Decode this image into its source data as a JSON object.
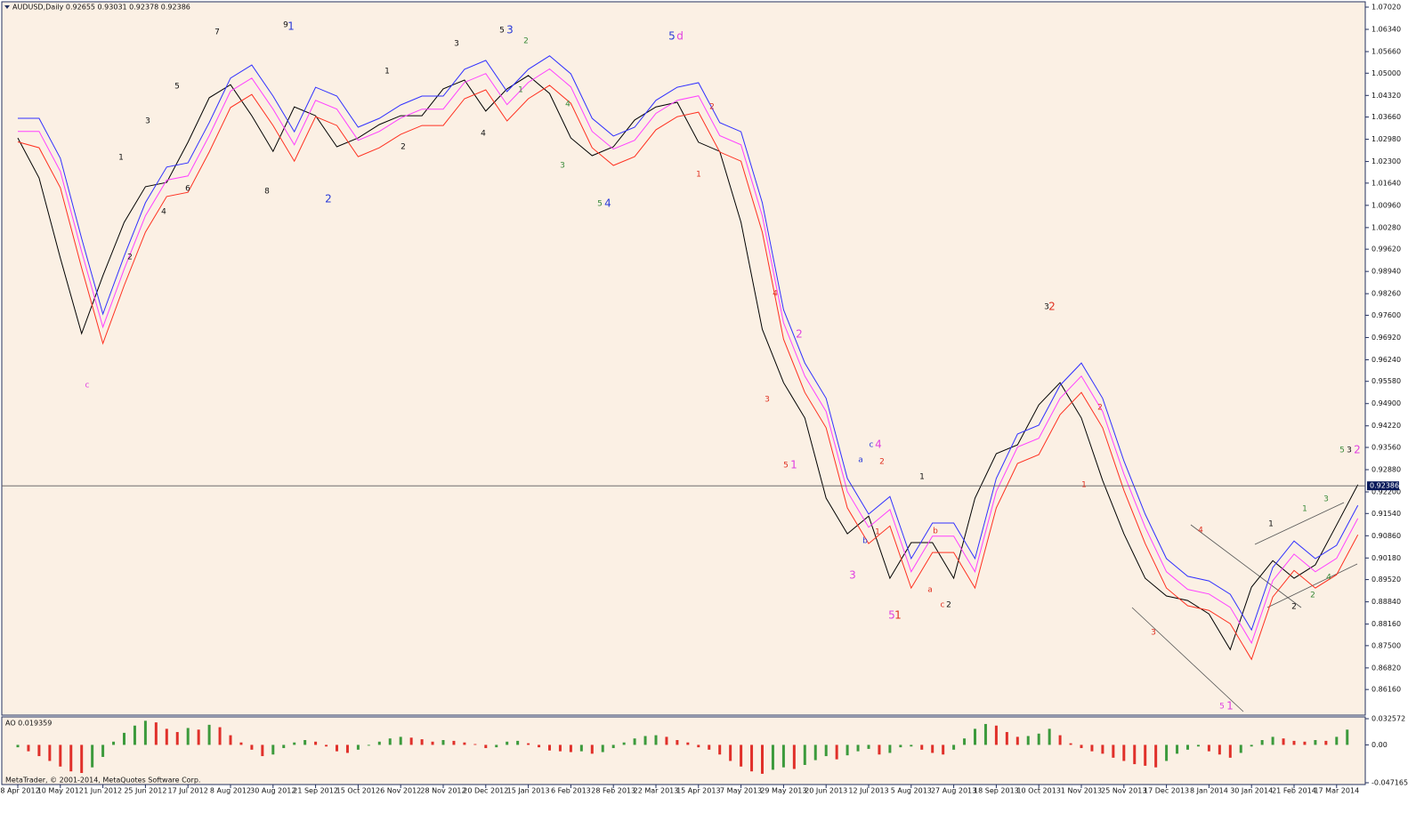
{
  "chart_data": [
    {
      "type": "line",
      "title": "AUDUSD,Daily  0.92655 0.93031 0.92378 0.92386",
      "categories": [
        "18 Apr 2012",
        null,
        "10 May 2012",
        null,
        "1 Jun 2012",
        null,
        "25 Jun 2012",
        null,
        "17 Jul 2012",
        null,
        "8 Aug 2012",
        null,
        "30 Aug 2012",
        null,
        "21 Sep 2012",
        null,
        "15 Oct 2012",
        null,
        "6 Nov 2012",
        null,
        "28 Nov 2012",
        null,
        "20 Dec 2012",
        null,
        "15 Jan 2013",
        null,
        "6 Feb 2013",
        null,
        "28 Feb 2013",
        null,
        "22 Mar 2013",
        null,
        "15 Apr 2013",
        null,
        "7 May 2013",
        null,
        "29 May 2013",
        null,
        "20 Jun 2013",
        null,
        "12 Jul 2013",
        null,
        "5 Aug 2013",
        null,
        "27 Aug 2013",
        null,
        "18 Sep 2013",
        null,
        "10 Oct 2013",
        null,
        "1 Nov 2013",
        null,
        "25 Nov 2013",
        null,
        "17 Dec 2013",
        null,
        "8 Jan 2014",
        null,
        "30 Jan 2014",
        null,
        "21 Feb 2014",
        null,
        "17 Mar 2014",
        null
      ],
      "series": [
        {
          "color": "#000000",
          "values": [
            1.0302,
            1.018,
            0.9935,
            0.9704,
            0.9881,
            1.0044,
            1.0153,
            1.0166,
            1.0289,
            1.0425,
            1.0465,
            1.037,
            1.0261,
            1.0397,
            1.037,
            1.0275,
            1.0302,
            1.0343,
            1.037,
            1.037,
            1.0452,
            1.0479,
            1.0384,
            1.0452,
            1.0493,
            1.0438,
            1.0302,
            1.0248,
            1.0275,
            1.0357,
            1.0397,
            1.0411,
            1.0289,
            1.0261,
            1.0044,
            0.9717,
            0.9554,
            0.9446,
            0.9201,
            0.9092,
            0.9146,
            0.8956,
            0.9065,
            0.9065,
            0.8956,
            0.9201,
            0.9337,
            0.9364,
            0.9486,
            0.9554,
            0.9446,
            0.9255,
            0.9092,
            0.8956,
            0.8902,
            0.8888,
            0.8847,
            0.8738,
            0.8929,
            0.901,
            0.8956,
            0.8997,
            0.9119,
            0.9242
          ]
        },
        {
          "color": "#ff3020",
          "values": [
            1.029,
            1.0272,
            1.015,
            0.9905,
            0.9674,
            0.9851,
            1.0014,
            1.0123,
            1.0136,
            1.0259,
            1.0395,
            1.0435,
            1.034,
            1.0231,
            1.0367,
            1.034,
            1.0245,
            1.0272,
            1.0313,
            1.034,
            1.034,
            1.0422,
            1.0449,
            1.0354,
            1.0422,
            1.0463,
            1.0408,
            1.0272,
            1.0218,
            1.0245,
            1.0327,
            1.0367,
            1.0381,
            1.0259,
            1.0231,
            1.0014,
            0.9687,
            0.9524,
            0.9416,
            0.9171,
            0.9062,
            0.9116,
            0.8926,
            0.9035,
            0.9035,
            0.8926,
            0.9171,
            0.9307,
            0.9334,
            0.9456,
            0.9524,
            0.9416,
            0.9225,
            0.9062,
            0.8926,
            0.8872,
            0.8858,
            0.8817,
            0.8708,
            0.8899,
            0.898,
            0.8926,
            0.8967,
            0.9089
          ]
        },
        {
          "color": "#ff40ff",
          "values": [
            1.0322,
            1.0322,
            1.02,
            0.9955,
            0.9724,
            0.9901,
            1.0064,
            1.0173,
            1.0186,
            1.0309,
            1.0445,
            1.0485,
            1.039,
            1.0281,
            1.0417,
            1.039,
            1.0295,
            1.0322,
            1.0363,
            1.039,
            1.039,
            1.0472,
            1.0499,
            1.0404,
            1.0472,
            1.0513,
            1.0458,
            1.0322,
            1.0268,
            1.0295,
            1.0377,
            1.0417,
            1.0431,
            1.0309,
            1.0281,
            1.0064,
            0.9737,
            0.9574,
            0.9466,
            0.9221,
            0.9112,
            0.9166,
            0.8976,
            0.9085,
            0.9085,
            0.8976,
            0.9221,
            0.9357,
            0.9384,
            0.9506,
            0.9574,
            0.9466,
            0.9275,
            0.9112,
            0.8976,
            0.8922,
            0.8908,
            0.8867,
            0.8758,
            0.8949,
            0.903,
            0.8976,
            0.9017,
            0.9139
          ]
        },
        {
          "color": "#3030ff",
          "values": [
            1.0362,
            1.0362,
            1.024,
            0.9995,
            0.9764,
            0.9941,
            1.0104,
            1.0213,
            1.0226,
            1.0349,
            1.0485,
            1.0525,
            1.043,
            1.0321,
            1.0457,
            1.043,
            1.0335,
            1.0362,
            1.0403,
            1.043,
            1.043,
            1.0512,
            1.0539,
            1.0444,
            1.0512,
            1.0553,
            1.0498,
            1.0362,
            1.0308,
            1.0335,
            1.0417,
            1.0457,
            1.0471,
            1.0349,
            1.0321,
            1.0104,
            0.9777,
            0.9614,
            0.9506,
            0.9261,
            0.9152,
            0.9206,
            0.9016,
            0.9125,
            0.9125,
            0.9016,
            0.9261,
            0.9397,
            0.9424,
            0.9546,
            0.9614,
            0.9506,
            0.9315,
            0.9152,
            0.9016,
            0.8962,
            0.8948,
            0.8907,
            0.8798,
            0.8989,
            0.907,
            0.9016,
            0.9057,
            0.9179
          ]
        }
      ],
      "ylim": [
        0.8543,
        1.0702
      ],
      "yticks": [
        {
          "value": 1.0702,
          "label": "1.07020"
        },
        {
          "value": 1.0634,
          "label": "1.06340"
        },
        {
          "value": 1.0566,
          "label": "1.05660"
        },
        {
          "value": 1.05,
          "label": "1.05000"
        },
        {
          "value": 1.0432,
          "label": "1.04320"
        },
        {
          "value": 1.0366,
          "label": "1.03660"
        },
        {
          "value": 1.0298,
          "label": "1.02980"
        },
        {
          "value": 1.023,
          "label": "1.02300"
        },
        {
          "value": 1.0164,
          "label": "1.01640"
        },
        {
          "value": 1.0096,
          "label": "1.00960"
        },
        {
          "value": 1.0028,
          "label": "1.00280"
        },
        {
          "value": 0.9962,
          "label": "0.99620"
        },
        {
          "value": 0.9894,
          "label": "0.98940"
        },
        {
          "value": 0.9826,
          "label": "0.98260"
        },
        {
          "value": 0.976,
          "label": "0.97600"
        },
        {
          "value": 0.9692,
          "label": "0.96920"
        },
        {
          "value": 0.9624,
          "label": "0.96240"
        },
        {
          "value": 0.9558,
          "label": "0.95580"
        },
        {
          "value": 0.949,
          "label": "0.94900"
        },
        {
          "value": 0.9422,
          "label": "0.94220"
        },
        {
          "value": 0.9356,
          "label": "0.93560"
        },
        {
          "value": 0.9288,
          "label": "0.92880"
        },
        {
          "value": 0.922,
          "label": "0.92200"
        },
        {
          "value": 0.9154,
          "label": "0.91540"
        },
        {
          "value": 0.9086,
          "label": "0.90860"
        },
        {
          "value": 0.9018,
          "label": "0.90180"
        },
        {
          "value": 0.8952,
          "label": "0.89520"
        },
        {
          "value": 0.8884,
          "label": "0.88840"
        },
        {
          "value": 0.8816,
          "label": "0.88160"
        },
        {
          "value": 0.875,
          "label": "0.87500"
        },
        {
          "value": 0.8682,
          "label": "0.86820"
        },
        {
          "value": 0.8616,
          "label": "0.86160"
        }
      ],
      "last_price": 0.92386,
      "annotations": [
        "c",
        "1",
        "2",
        "3",
        "4",
        "5",
        "6",
        "7",
        "8",
        "9",
        "1",
        "2",
        "1",
        "2",
        "3",
        "4",
        "5",
        "3",
        "2",
        "1",
        "4",
        "3",
        "5",
        "4",
        "5",
        "d",
        "2",
        "1",
        "4",
        "2",
        "3",
        "5",
        "1",
        "3",
        "a",
        "c",
        "4",
        "2",
        "b",
        "1",
        "5",
        "1",
        "1",
        "b",
        "a",
        "c",
        "2",
        "3",
        "2",
        "2",
        "1",
        "4",
        "3",
        "5",
        "1",
        "1",
        "2",
        "1",
        "3",
        "2",
        "4",
        "5",
        "3",
        "2"
      ],
      "grid": false
    },
    {
      "type": "bar",
      "title": "AO 0.019359",
      "caption": "MetaTrader, © 2001-2014, MetaQuotes Software Corp.",
      "rising_color": "#3c9a3c",
      "falling_color": "#e0302a",
      "values": [
        -0.003,
        -0.008,
        -0.014,
        -0.02,
        -0.027,
        -0.033,
        -0.035,
        -0.028,
        -0.015,
        0.004,
        0.015,
        0.024,
        0.03,
        0.028,
        0.02,
        0.016,
        0.021,
        0.019,
        0.025,
        0.022,
        0.012,
        0.003,
        -0.006,
        -0.014,
        -0.012,
        -0.004,
        0.003,
        0.006,
        0.004,
        -0.002,
        -0.008,
        -0.01,
        -0.006,
        -0.001,
        0.004,
        0.008,
        0.01,
        0.009,
        0.007,
        0.004,
        0.006,
        0.005,
        0.003,
        0.001,
        -0.004,
        -0.003,
        0.004,
        0.005,
        0.002,
        -0.003,
        -0.007,
        -0.008,
        -0.009,
        -0.008,
        -0.011,
        -0.009,
        -0.004,
        0.003,
        0.008,
        0.011,
        0.012,
        0.01,
        0.006,
        0.003,
        -0.003,
        -0.006,
        -0.012,
        -0.02,
        -0.027,
        -0.033,
        -0.036,
        -0.031,
        -0.028,
        -0.03,
        -0.025,
        -0.019,
        -0.014,
        -0.018,
        -0.013,
        -0.008,
        -0.005,
        -0.012,
        -0.01,
        -0.003,
        -0.002,
        -0.006,
        -0.01,
        -0.012,
        -0.006,
        0.008,
        0.02,
        0.026,
        0.024,
        0.016,
        0.01,
        0.011,
        0.014,
        0.02,
        0.012,
        0.002,
        -0.004,
        -0.008,
        -0.011,
        -0.016,
        -0.02,
        -0.024,
        -0.026,
        -0.028,
        -0.02,
        -0.011,
        -0.006,
        -0.002,
        -0.008,
        -0.012,
        -0.016,
        -0.01,
        -0.002,
        0.006,
        0.01,
        0.008,
        0.005,
        0.004,
        0.006,
        0.005,
        0.01,
        0.019
      ],
      "ylim": [
        -0.047165,
        0.032572
      ],
      "yticks": [
        0.032572,
        {
          "value": 0,
          "label": "0.00"
        },
        -0.047165
      ]
    }
  ]
}
